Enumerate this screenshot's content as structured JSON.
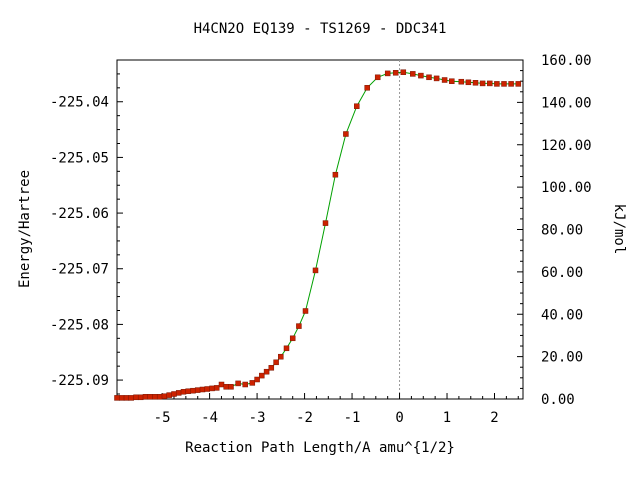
{
  "chart_data": {
    "type": "line",
    "title": "H4CN2O   EQ139 - TS1269 - DDC341",
    "xlabel": "Reaction Path Length/A amu^{1/2}",
    "ylabel": "Energy/Hartree",
    "y2label": "kJ/mol",
    "xlim": [
      -5.95,
      2.6
    ],
    "ylim": [
      -225.0934,
      -225.0325
    ],
    "y2lim": [
      0.0,
      160.0
    ],
    "x_ticks": [
      "-5",
      "-4",
      "-3",
      "-2",
      "-1",
      "0",
      "1",
      "2"
    ],
    "y_ticks": [
      "-225.04",
      "-225.05",
      "-225.06",
      "-225.07",
      "-225.08",
      "-225.09"
    ],
    "y2_ticks": [
      "0.00",
      "20.00",
      "40.00",
      "60.00",
      "80.00",
      "100.00",
      "120.00",
      "140.00",
      "160.00"
    ],
    "ts_marker_x": 0,
    "grid": false,
    "colors": {
      "line": "#00a000",
      "marker": "#cc2200",
      "ts_line": "#999999"
    },
    "series": [
      {
        "x": [
          -5.95,
          -5.85,
          -5.75,
          -5.65,
          -5.55,
          -5.45,
          -5.35,
          -5.25,
          -5.15,
          -5.05,
          -4.95,
          -4.85,
          -4.75,
          -4.65,
          -4.55,
          -4.45,
          -4.35,
          -4.25,
          -4.15,
          -4.05,
          -3.95,
          -3.85,
          -3.75,
          -3.65,
          -3.55,
          -3.4,
          -3.25,
          -3.1,
          -3.0,
          -2.9,
          -2.8,
          -2.7,
          -2.6,
          -2.5,
          -2.38,
          -2.25,
          -2.12,
          -1.98,
          -1.77,
          -1.56,
          -1.35,
          -1.13,
          -0.9,
          -0.68,
          -0.46,
          -0.25,
          -0.08,
          0.08,
          0.28,
          0.45,
          0.62,
          0.78,
          0.95,
          1.1,
          1.3,
          1.45,
          1.6,
          1.75,
          1.9,
          2.05,
          2.2,
          2.35,
          2.5
        ],
        "y": [
          -225.0932,
          -225.0932,
          -225.0932,
          -225.0932,
          -225.0931,
          -225.0931,
          -225.093,
          -225.093,
          -225.093,
          -225.093,
          -225.0929,
          -225.0927,
          -225.0925,
          -225.0923,
          -225.0921,
          -225.092,
          -225.0919,
          -225.0918,
          -225.0917,
          -225.0916,
          -225.0915,
          -225.0914,
          -225.0908,
          -225.0912,
          -225.0912,
          -225.0906,
          -225.0908,
          -225.0905,
          -225.0899,
          -225.0892,
          -225.0885,
          -225.0878,
          -225.0868,
          -225.0858,
          -225.0843,
          -225.0825,
          -225.0803,
          -225.0776,
          -225.0703,
          -225.0618,
          -225.0531,
          -225.0458,
          -225.0408,
          -225.0375,
          -225.0356,
          -225.0349,
          -225.0348,
          -225.0347,
          -225.035,
          -225.0353,
          -225.0356,
          -225.0358,
          -225.0361,
          -225.0363,
          -225.0364,
          -225.0365,
          -225.0366,
          -225.0367,
          -225.0367,
          -225.0368,
          -225.0368,
          -225.0368,
          -225.0368
        ]
      }
    ]
  }
}
